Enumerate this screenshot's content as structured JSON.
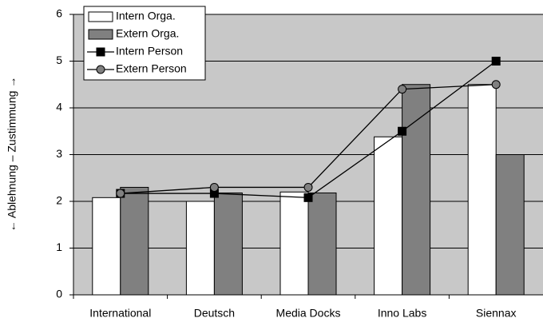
{
  "chart_data": {
    "type": "bar",
    "y_label": "← Ablehnung – Zustimmung →",
    "categories": [
      "International",
      "Deutsch",
      "Media Docks",
      "Inno Labs",
      "Siennax"
    ],
    "series": [
      {
        "name": "Intern Orga.",
        "type": "bar",
        "color": "#ffffff",
        "values": [
          2.08,
          2.0,
          2.2,
          3.38,
          4.5
        ]
      },
      {
        "name": "Extern Orga.",
        "type": "bar",
        "color": "#808080",
        "values": [
          2.3,
          2.18,
          2.18,
          4.5,
          3.0
        ]
      },
      {
        "name": "Intern Person",
        "type": "line",
        "marker": "square",
        "color": "#000000",
        "values": [
          2.17,
          2.17,
          2.08,
          3.5,
          5.0
        ]
      },
      {
        "name": "Extern Person",
        "type": "line",
        "marker": "circle",
        "color": "#808080",
        "values": [
          2.17,
          2.3,
          2.3,
          4.4,
          4.5
        ]
      }
    ],
    "ylim": [
      0,
      6
    ],
    "yticks": [
      0,
      1,
      2,
      3,
      4,
      5,
      6
    ],
    "grid": true,
    "legend": "top-left"
  }
}
